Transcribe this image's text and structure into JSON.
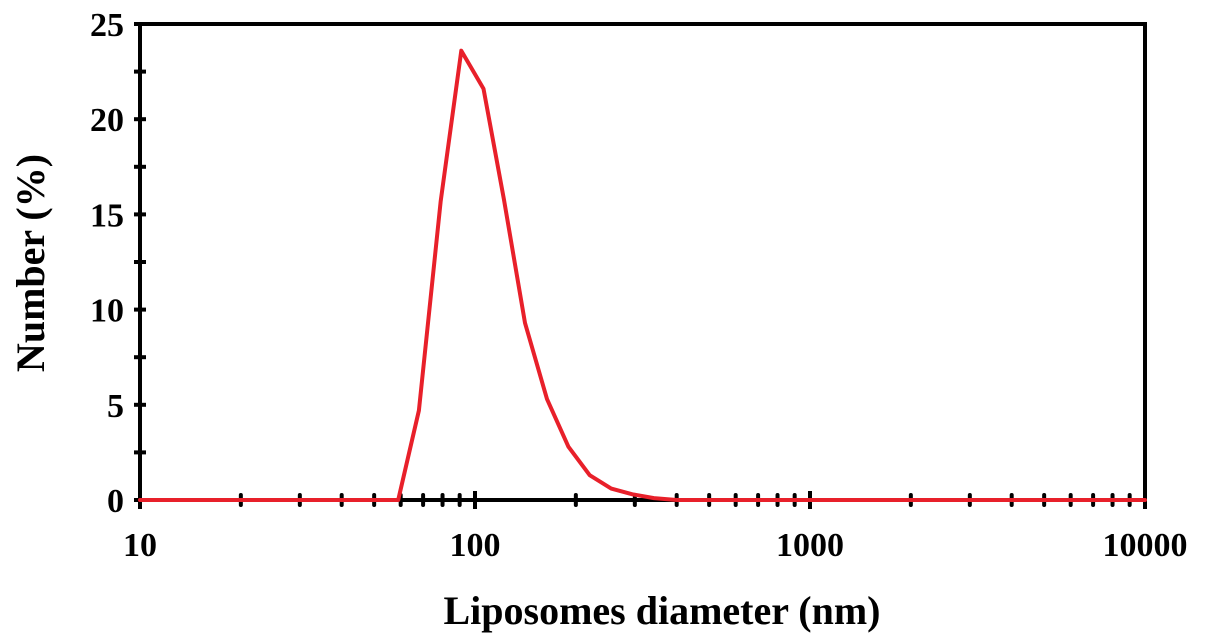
{
  "chart_data": {
    "type": "line",
    "title": "",
    "xlabel": "Liposomes diameter (nm)",
    "ylabel": "Number (%)",
    "x_scale": "log",
    "xlim": [
      10,
      10000
    ],
    "ylim": [
      0,
      25
    ],
    "x_ticks": [
      10,
      100,
      1000,
      10000
    ],
    "x_tick_labels": [
      "10",
      "100",
      "1000",
      "10000"
    ],
    "y_ticks": [
      0,
      5,
      10,
      15,
      20,
      25
    ],
    "y_tick_labels": [
      "0",
      "5",
      "10",
      "15",
      "20",
      "25"
    ],
    "grid": false,
    "legend": "none",
    "series": [
      {
        "color": "#e8202a",
        "x": [
          10,
          59,
          68,
          79,
          91,
          106,
          122,
          141,
          164,
          190,
          220,
          255,
          295,
          342,
          400,
          1000,
          10000
        ],
        "y": [
          0,
          0,
          4.7,
          15.7,
          23.6,
          21.6,
          15.8,
          9.3,
          5.3,
          2.8,
          1.3,
          0.6,
          0.3,
          0.1,
          0,
          0,
          0
        ]
      }
    ]
  }
}
